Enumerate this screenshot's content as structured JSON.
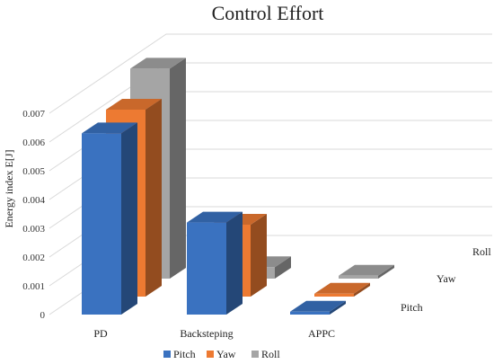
{
  "chart_data": {
    "type": "bar",
    "subtype": "3d-clustered-column",
    "title": "Control Effort",
    "xlabel": "",
    "ylabel": "Energy index  E[J]",
    "ylim": [
      0,
      0.007
    ],
    "yticks": [
      "0",
      "0.001",
      "0.002",
      "0.003",
      "0.004",
      "0.005",
      "0.006",
      "0.007"
    ],
    "categories": [
      "PD",
      "Backsteping",
      "APPC"
    ],
    "series": [
      {
        "name": "Pitch",
        "values": [
          0.0063,
          0.0032,
          0.0001
        ]
      },
      {
        "name": "Yaw",
        "values": [
          0.0065,
          0.0025,
          0.0001
        ]
      },
      {
        "name": "Roll",
        "values": [
          0.0073,
          0.0004,
          0.0001
        ]
      }
    ],
    "grid": true,
    "legend": "bottom"
  },
  "colors": {
    "Pitch": "#3a72c0",
    "Yaw": "#ed7a32",
    "Roll": "#a5a5a5",
    "grid": "#d9d9d9"
  }
}
